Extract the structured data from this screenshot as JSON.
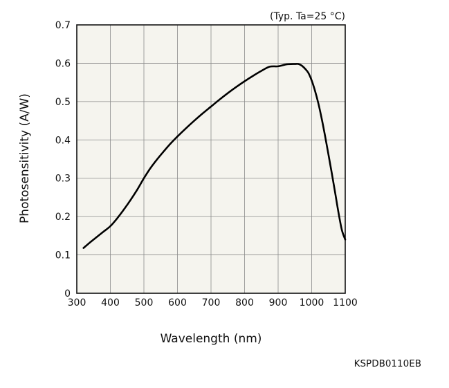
{
  "chart_data": {
    "type": "line",
    "condition_note": "(Typ. Ta=25 °C)",
    "xlabel": "Wavelength (nm)",
    "ylabel": "Photosensitivity (A/W)",
    "document_code": "KSPDB0110EB",
    "xlim": [
      300,
      1100
    ],
    "ylim": [
      0,
      0.7
    ],
    "x_ticks": [
      300,
      400,
      500,
      600,
      700,
      800,
      900,
      1000,
      1100
    ],
    "y_ticks": [
      0,
      0.1,
      0.2,
      0.3,
      0.4,
      0.5,
      0.6,
      0.7
    ],
    "x_tick_labels": [
      "300",
      "400",
      "500",
      "600",
      "700",
      "800",
      "900",
      "1000",
      "1100"
    ],
    "y_tick_labels": [
      "0",
      "0.1",
      "0.2",
      "0.3",
      "0.4",
      "0.5",
      "0.6",
      "0.7"
    ],
    "grid": true,
    "plot_background": "#f5f4ee",
    "line_color": "#000000",
    "series": [
      {
        "x": [
          320,
          340,
          360,
          380,
          400,
          420,
          440,
          460,
          480,
          500,
          520,
          540,
          560,
          580,
          600,
          625,
          650,
          675,
          700,
          725,
          750,
          775,
          800,
          825,
          850,
          875,
          900,
          925,
          950,
          960,
          970,
          980,
          990,
          1000,
          1010,
          1020,
          1030,
          1040,
          1050,
          1060,
          1070,
          1080,
          1090,
          1100
        ],
        "y": [
          0.118,
          0.133,
          0.147,
          0.161,
          0.175,
          0.195,
          0.218,
          0.243,
          0.27,
          0.3,
          0.327,
          0.35,
          0.371,
          0.391,
          0.409,
          0.43,
          0.45,
          0.469,
          0.487,
          0.505,
          0.522,
          0.538,
          0.553,
          0.567,
          0.58,
          0.591,
          0.592,
          0.597,
          0.598,
          0.598,
          0.594,
          0.586,
          0.575,
          0.555,
          0.528,
          0.495,
          0.455,
          0.41,
          0.362,
          0.313,
          0.262,
          0.21,
          0.165,
          0.14
        ]
      }
    ]
  }
}
